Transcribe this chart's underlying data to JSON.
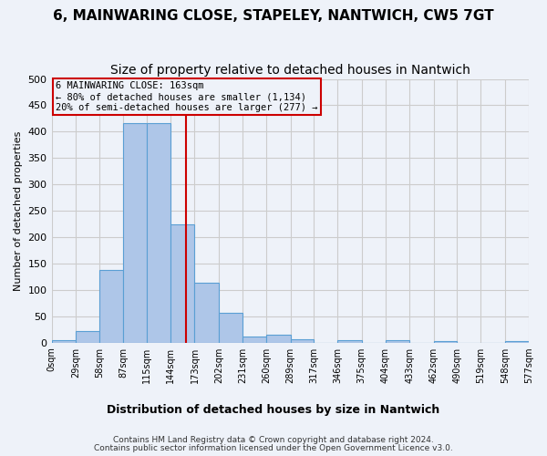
{
  "title": "6, MAINWARING CLOSE, STAPELEY, NANTWICH, CW5 7GT",
  "subtitle": "Size of property relative to detached houses in Nantwich",
  "xlabel_bottom": "Distribution of detached houses by size in Nantwich",
  "ylabel": "Number of detached properties",
  "footer_line1": "Contains HM Land Registry data © Crown copyright and database right 2024.",
  "footer_line2": "Contains public sector information licensed under the Open Government Licence v3.0.",
  "bin_edges": [
    0,
    29,
    58,
    87,
    115,
    144,
    173,
    202,
    231,
    260,
    289,
    317,
    346,
    375,
    404,
    433,
    462,
    490,
    519,
    548,
    577
  ],
  "bin_labels": [
    "0sqm",
    "29sqm",
    "58sqm",
    "87sqm",
    "115sqm",
    "144sqm",
    "173sqm",
    "202sqm",
    "231sqm",
    "260sqm",
    "289sqm",
    "317sqm",
    "346sqm",
    "375sqm",
    "404sqm",
    "433sqm",
    "462sqm",
    "490sqm",
    "519sqm",
    "548sqm",
    "577sqm"
  ],
  "bar_heights": [
    4,
    21,
    138,
    416,
    416,
    224,
    114,
    56,
    12,
    15,
    7,
    0,
    5,
    0,
    4,
    0,
    3,
    0,
    0,
    2
  ],
  "bar_color": "#aec6e8",
  "bar_edgecolor": "#5a9fd4",
  "property_size": 163,
  "vline_color": "#cc0000",
  "annotation_line1": "6 MAINWARING CLOSE: 163sqm",
  "annotation_line2": "← 80% of detached houses are smaller (1,134)",
  "annotation_line3": "20% of semi-detached houses are larger (277) →",
  "annotation_box_edgecolor": "#cc0000",
  "ylim": [
    0,
    500
  ],
  "yticks": [
    0,
    50,
    100,
    150,
    200,
    250,
    300,
    350,
    400,
    450,
    500
  ],
  "grid_color": "#cccccc",
  "bg_color": "#eef2f9",
  "title_fontsize": 11,
  "subtitle_fontsize": 10
}
